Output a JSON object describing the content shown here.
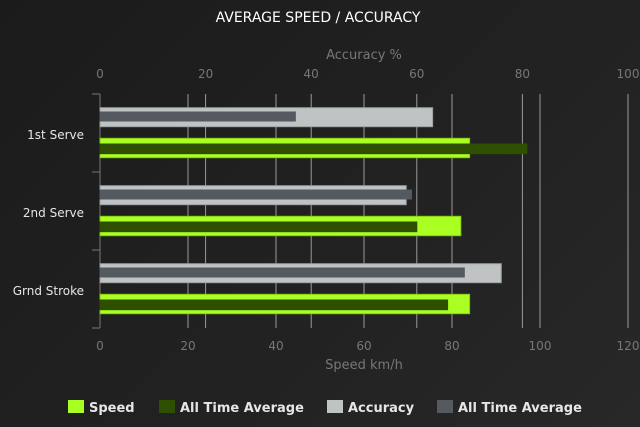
{
  "chart_data": {
    "type": "bar",
    "orientation": "horizontal",
    "title": "AVERAGE SPEED / ACCURACY",
    "categories": [
      "1st Serve",
      "2nd Serve",
      "Grnd Stroke"
    ],
    "top_axis": {
      "label": "Accuracy %",
      "range": [
        0,
        100
      ],
      "ticks": [
        "0",
        "20",
        "40",
        "60",
        "80",
        "100"
      ]
    },
    "bottom_axis": {
      "label": "Speed km/h",
      "range": [
        0,
        120
      ],
      "ticks": [
        "0",
        "20",
        "40",
        "60",
        "80",
        "100",
        "120"
      ]
    },
    "series": [
      {
        "name": "Speed",
        "axis": "bottom",
        "color": "#aaff22",
        "values": [
          84,
          82,
          84
        ]
      },
      {
        "name": "All Time Average",
        "axis": "bottom",
        "color": "#2f4f00",
        "values": [
          97,
          72,
          79
        ]
      },
      {
        "name": "Accuracy",
        "axis": "top",
        "color": "#bfc3c4",
        "values": [
          63,
          58,
          76
        ]
      },
      {
        "name": "All Time Average",
        "axis": "top",
        "color": "#555a60",
        "values": [
          37,
          59,
          69
        ]
      }
    ],
    "grid": true,
    "legend": "bottom"
  }
}
